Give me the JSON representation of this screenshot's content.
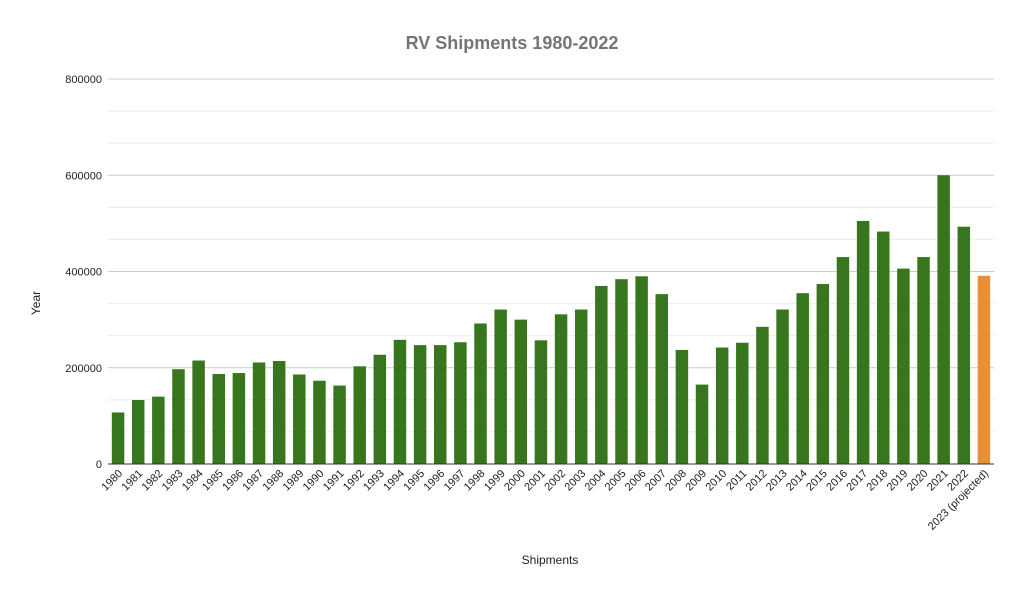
{
  "chart_data": {
    "type": "bar",
    "title": "RV Shipments 1980-2022",
    "xlabel": "Shipments",
    "ylabel": "Year",
    "ylim": [
      0,
      800000
    ],
    "yticks": [
      "0",
      "200000",
      "400000",
      "600000",
      "800000"
    ],
    "grid": true,
    "legend": "none",
    "categories": [
      "1980",
      "1981",
      "1982",
      "1983",
      "1984",
      "1985",
      "1986",
      "1987",
      "1988",
      "1989",
      "1990",
      "1991",
      "1992",
      "1993",
      "1994",
      "1995",
      "1996",
      "1997",
      "1998",
      "1999",
      "2000",
      "2001",
      "2002",
      "2003",
      "2004",
      "2005",
      "2006",
      "2007",
      "2008",
      "2009",
      "2010",
      "2011",
      "2012",
      "2013",
      "2014",
      "2015",
      "2016",
      "2017",
      "2018",
      "2019",
      "2020",
      "2021",
      "2022",
      "2023 (projected)"
    ],
    "values": [
      107000,
      133000,
      140000,
      197000,
      215000,
      187000,
      189000,
      211000,
      214000,
      186000,
      173000,
      163000,
      203000,
      227000,
      258000,
      247000,
      247000,
      253000,
      292000,
      321000,
      300000,
      257000,
      311000,
      321000,
      370000,
      384000,
      390000,
      353000,
      237000,
      165000,
      242000,
      252000,
      285000,
      321000,
      355000,
      374000,
      430000,
      505000,
      483000,
      406000,
      430000,
      600000,
      493000,
      391000
    ],
    "colors": {
      "bar": "#38761d",
      "projected_bar": "#e69138",
      "title": "#757575",
      "major_grid": "#cccccc",
      "minor_grid": "#ebebeb",
      "axis": "#333333"
    },
    "highlight_index": 43
  }
}
